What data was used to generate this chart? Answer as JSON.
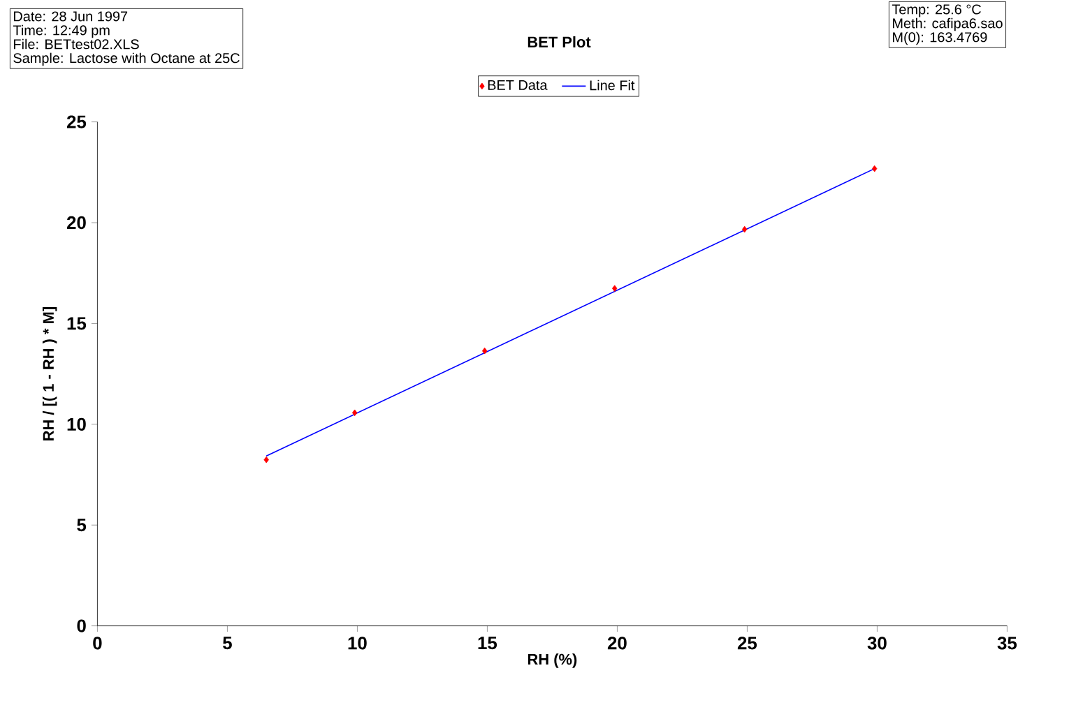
{
  "chart_data": {
    "type": "scatter",
    "title": "BET Plot",
    "xlabel": "RH (%)",
    "ylabel": "RH / [( 1 - RH ) * M]",
    "x": [
      6.5,
      9.9,
      14.9,
      19.9,
      24.9,
      29.9
    ],
    "series": [
      {
        "name": "BET Data",
        "color": "#ff0000",
        "marker": "diamond",
        "values": [
          8.24,
          10.57,
          13.64,
          16.74,
          19.67,
          22.68
        ]
      },
      {
        "name": "Line Fit",
        "type": "line",
        "color": "#0000ff",
        "marker": "none",
        "x": [
          6.5,
          29.9
        ],
        "values": [
          8.43,
          22.68
        ]
      }
    ],
    "xlim": [
      0,
      35
    ],
    "ylim": [
      0,
      25
    ],
    "xticks": [
      0,
      5,
      10,
      15,
      20,
      25,
      30,
      35
    ],
    "yticks": [
      0,
      5,
      10,
      15,
      20,
      25
    ],
    "grid": false,
    "legend": "top",
    "annotations": [
      "Date:  28 Jun 1997",
      "Time:  12:49 pm",
      "File:  BETtest02.XLS",
      "Sample:  Lactose with Octane at 25C",
      "Temp:  25.6 °C",
      "Meth:  cafipa6.sao",
      "M(0):  163.4769"
    ]
  }
}
